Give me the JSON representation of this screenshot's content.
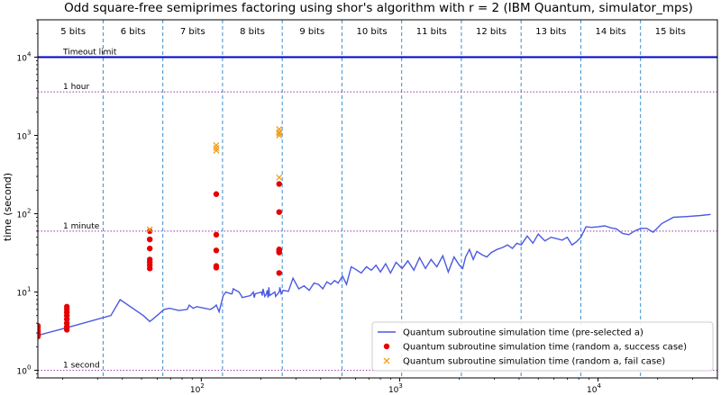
{
  "chart_data": {
    "type": "scatter",
    "title": "Odd square-free semiprimes factoring using shor's algorithm with r = 2 (IBM Quantum, simulator_mps)",
    "xlabel": "",
    "ylabel": "time (second)",
    "xscale": "log",
    "yscale": "log",
    "xlim": [
      15,
      40000
    ],
    "ylim": [
      0.8,
      30000
    ],
    "x_ticks": [
      {
        "value": 100,
        "base": "10",
        "exp": "2"
      },
      {
        "value": 1000,
        "base": "10",
        "exp": "3"
      },
      {
        "value": 10000,
        "base": "10",
        "exp": "4"
      }
    ],
    "y_ticks": [
      {
        "value": 1,
        "base": "10",
        "exp": "0"
      },
      {
        "value": 10,
        "base": "10",
        "exp": "1"
      },
      {
        "value": 100,
        "base": "10",
        "exp": "2"
      },
      {
        "value": 1000,
        "base": "10",
        "exp": "3"
      },
      {
        "value": 10000,
        "base": "10",
        "exp": "4"
      }
    ],
    "bit_boundaries": [
      32,
      64,
      128,
      256,
      512,
      1024,
      2048,
      4096,
      8192,
      16384
    ],
    "bit_labels": [
      {
        "label": "5 bits",
        "x": 22.6
      },
      {
        "label": "6 bits",
        "x": 45.3
      },
      {
        "label": "7 bits",
        "x": 90.5
      },
      {
        "label": "8 bits",
        "x": 181
      },
      {
        "label": "9 bits",
        "x": 362
      },
      {
        "label": "10 bits",
        "x": 724
      },
      {
        "label": "11 bits",
        "x": 1448
      },
      {
        "label": "12 bits",
        "x": 2896
      },
      {
        "label": "13 bits",
        "x": 5793
      },
      {
        "label": "14 bits",
        "x": 11585
      },
      {
        "label": "15 bits",
        "x": 23170
      }
    ],
    "reference_lines": [
      {
        "label": "Timeout limit",
        "y": 10000,
        "color": "#0000cc",
        "style": "solid"
      },
      {
        "label": "1 hour",
        "y": 3600,
        "color": "#9933aa",
        "style": "dotted"
      },
      {
        "label": "1 minute",
        "y": 60,
        "color": "#9933aa",
        "style": "dotted"
      },
      {
        "label": "1 second",
        "y": 1,
        "color": "#9933aa",
        "style": "dotted"
      }
    ],
    "series": [
      {
        "name": "Quantum subroutine simulation time (pre-selected a)",
        "kind": "line",
        "color": "#4c59e0",
        "x": [
          15,
          21,
          35,
          39,
          51,
          55,
          57,
          65,
          69,
          77,
          85,
          87,
          91,
          95,
          111,
          115,
          119,
          123,
          129,
          133,
          141,
          143,
          145,
          155,
          159,
          161,
          177,
          183,
          185,
          187,
          201,
          203,
          205,
          209,
          213,
          215,
          217,
          219,
          221,
          235,
          237,
          247,
          249,
          253,
          259,
          275,
          290,
          310,
          330,
          350,
          370,
          390,
          410,
          430,
          450,
          470,
          490,
          515,
          540,
          570,
          600,
          640,
          680,
          720,
          760,
          800,
          850,
          900,
          960,
          1030,
          1100,
          1180,
          1260,
          1350,
          1440,
          1540,
          1650,
          1760,
          1880,
          2000,
          2080,
          2150,
          2250,
          2350,
          2450,
          2600,
          2750,
          2900,
          3100,
          3300,
          3500,
          3700,
          3900,
          4100,
          4400,
          4700,
          5000,
          5400,
          5800,
          6200,
          6600,
          7000,
          7400,
          7800,
          8200,
          8700,
          9300,
          10000,
          10800,
          11600,
          12400,
          13300,
          14300,
          15300,
          16400,
          17600,
          19000,
          21000,
          24000,
          28000,
          33000,
          37000
        ],
        "y": [
          2.8,
          3.5,
          5.0,
          8.0,
          5.0,
          4.2,
          4.5,
          6.0,
          6.2,
          5.8,
          6.0,
          6.8,
          6.2,
          6.5,
          6.0,
          6.3,
          6.8,
          5.6,
          9.0,
          10.0,
          9.5,
          9.5,
          11.0,
          10.0,
          9.0,
          8.5,
          9.0,
          10.0,
          8.5,
          9.5,
          10.0,
          9.0,
          11.0,
          8.8,
          9.5,
          10.5,
          8.5,
          11.5,
          9.0,
          10.0,
          8.8,
          10.0,
          11.5,
          9.5,
          10.5,
          10.2,
          15.0,
          11.0,
          12.0,
          10.5,
          13.0,
          12.5,
          11.0,
          13.5,
          12.5,
          14.0,
          13.0,
          16.0,
          12.5,
          21.0,
          19.5,
          17.5,
          21.0,
          19.0,
          22.0,
          18.0,
          23.0,
          17.5,
          24.0,
          20.0,
          25.0,
          19.0,
          27.5,
          20.0,
          26.0,
          21.0,
          29.0,
          18.0,
          28.0,
          22.0,
          20.0,
          28.0,
          35.0,
          26.0,
          33.0,
          30.0,
          28.0,
          32.0,
          35.0,
          37.0,
          40.0,
          36.0,
          42.0,
          40.0,
          52.0,
          42.0,
          55.0,
          45.0,
          50.0,
          48.0,
          46.0,
          50.0,
          40.0,
          44.0,
          50.0,
          68.0,
          67.0,
          68.0,
          70.0,
          66.0,
          64.0,
          56.0,
          54.0,
          60.0,
          65.0,
          65.0,
          58.0,
          75.0,
          90.0,
          92.0,
          95.0,
          98.0
        ]
      },
      {
        "name": "Quantum subroutine simulation time (random a, success case)",
        "kind": "scatter",
        "marker": "circle",
        "color": "#e60000",
        "x": [
          15,
          15,
          15,
          15,
          15,
          15,
          15,
          15,
          15,
          21,
          21,
          21,
          21,
          21,
          21,
          21,
          21,
          55,
          55,
          55,
          55,
          55,
          55,
          55,
          119,
          119,
          119,
          119,
          119,
          247,
          247,
          247,
          247,
          247,
          247,
          247
        ],
        "y": [
          2.7,
          2.8,
          2.9,
          3.0,
          3.1,
          3.2,
          3.3,
          3.5,
          3.7,
          3.3,
          3.6,
          4.0,
          4.5,
          5.0,
          5.5,
          6.0,
          6.5,
          20.0,
          22.0,
          24.0,
          26.0,
          36.0,
          47.0,
          60.0,
          20.5,
          21.5,
          34.0,
          54.0,
          178.0,
          17.5,
          32.0,
          33.0,
          34.0,
          35.0,
          105.0,
          240.0
        ]
      },
      {
        "name": "Quantum subroutine simulation time (random a, fail case)",
        "kind": "scatter",
        "marker": "x",
        "color": "#f0a020",
        "x": [
          55,
          119,
          119,
          119,
          247,
          247,
          247,
          247,
          247
        ],
        "y": [
          63.0,
          640.0,
          690.0,
          750.0,
          290.0,
          1000.0,
          1060.0,
          1100.0,
          1200.0
        ]
      }
    ],
    "grid": false,
    "legend_position": "lower-right"
  }
}
